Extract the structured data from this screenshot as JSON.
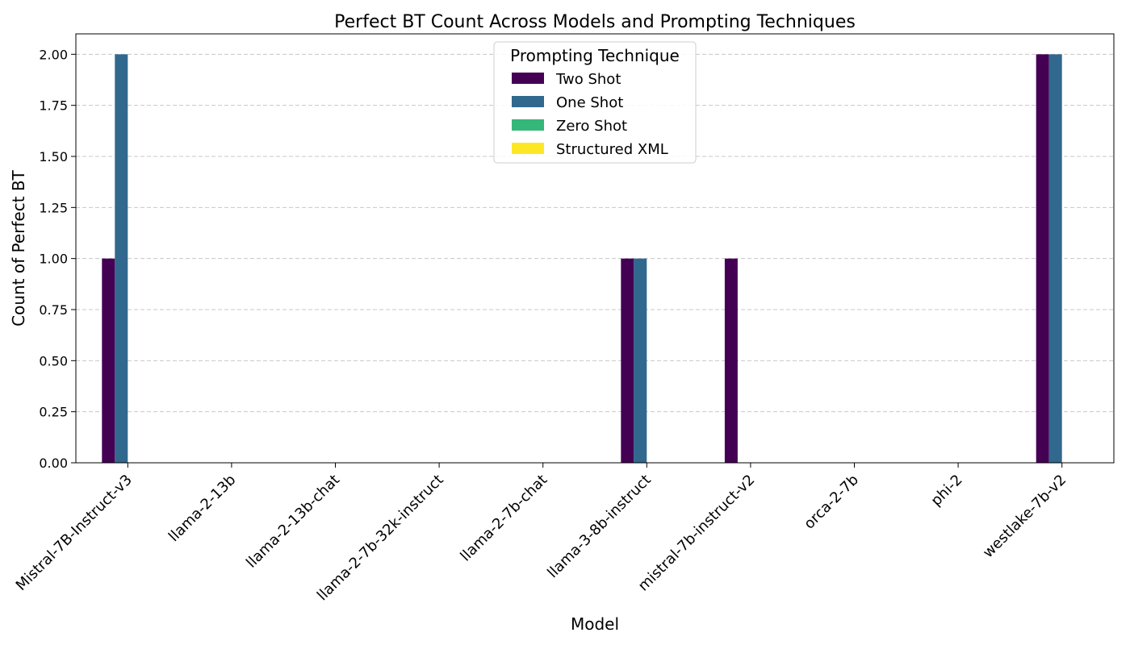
{
  "chart_data": {
    "type": "bar",
    "title": "Perfect BT Count Across Models and Prompting Techniques",
    "xlabel": "Model",
    "ylabel": "Count of Perfect BT",
    "categories": [
      "Mistral-7B-Instruct-v3",
      "llama-2-13b",
      "llama-2-13b-chat",
      "llama-2-7b-32k-instruct",
      "llama-2-7b-chat",
      "llama-3-8b-instruct",
      "mistral-7b-instruct-v2",
      "orca-2-7b",
      "phi-2",
      "westlake-7b-v2"
    ],
    "series": [
      {
        "name": "Two Shot",
        "color": "#440154",
        "values": [
          1,
          0,
          0,
          0,
          0,
          1,
          1,
          0,
          0,
          2
        ]
      },
      {
        "name": "One Shot",
        "color": "#31688e",
        "values": [
          2,
          0,
          0,
          0,
          0,
          1,
          0,
          0,
          0,
          2
        ]
      },
      {
        "name": "Zero Shot",
        "color": "#35b779",
        "values": [
          0,
          0,
          0,
          0,
          0,
          0,
          0,
          0,
          0,
          0
        ]
      },
      {
        "name": "Structured XML",
        "color": "#fde725",
        "values": [
          0,
          0,
          0,
          0,
          0,
          0,
          0,
          0,
          0,
          0
        ]
      }
    ],
    "ylim": [
      0,
      2.1
    ],
    "yticks": [
      "0.00",
      "0.25",
      "0.50",
      "0.75",
      "1.00",
      "1.25",
      "1.50",
      "1.75",
      "2.00"
    ],
    "grid": "y-dashed",
    "legend": {
      "title": "Prompting Technique",
      "placement": "top-center"
    }
  }
}
